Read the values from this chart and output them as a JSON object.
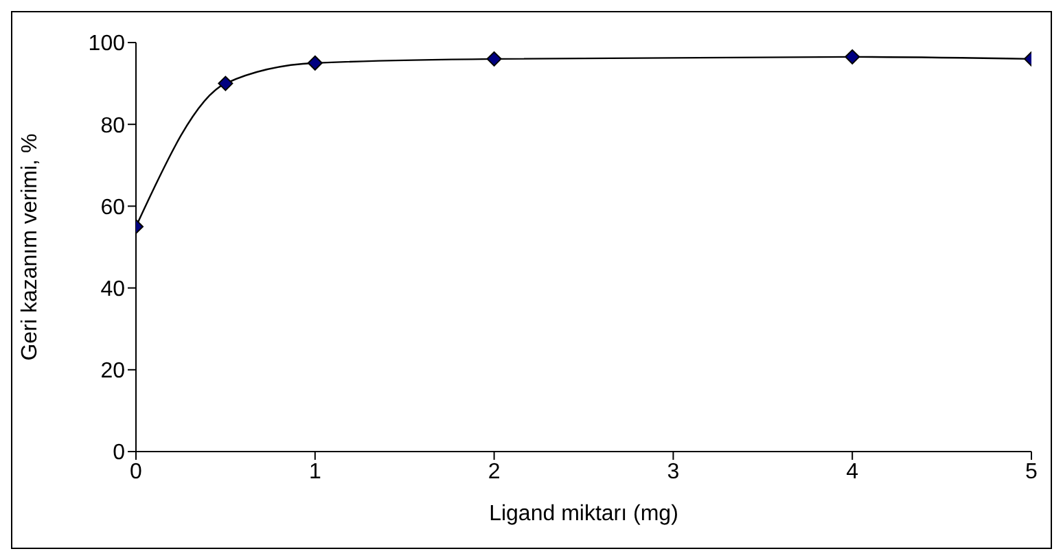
{
  "chart_data": {
    "type": "line",
    "xlabel": "Ligand miktarı (mg)",
    "ylabel": "Geri kazanım verimi, %",
    "x": [
      0,
      0.5,
      1,
      2,
      4,
      5
    ],
    "series": [
      {
        "color": "#000080",
        "values": [
          55,
          90,
          95,
          96,
          96.5,
          96
        ]
      }
    ],
    "xlim": [
      0,
      5
    ],
    "xticks": [
      0,
      1,
      2,
      3,
      4,
      5
    ],
    "ylim": [
      0,
      100
    ],
    "yticks": [
      0,
      20,
      40,
      60,
      80,
      100
    ],
    "grid": false,
    "legend": false,
    "marker": "diamond",
    "line_style": "solid"
  }
}
